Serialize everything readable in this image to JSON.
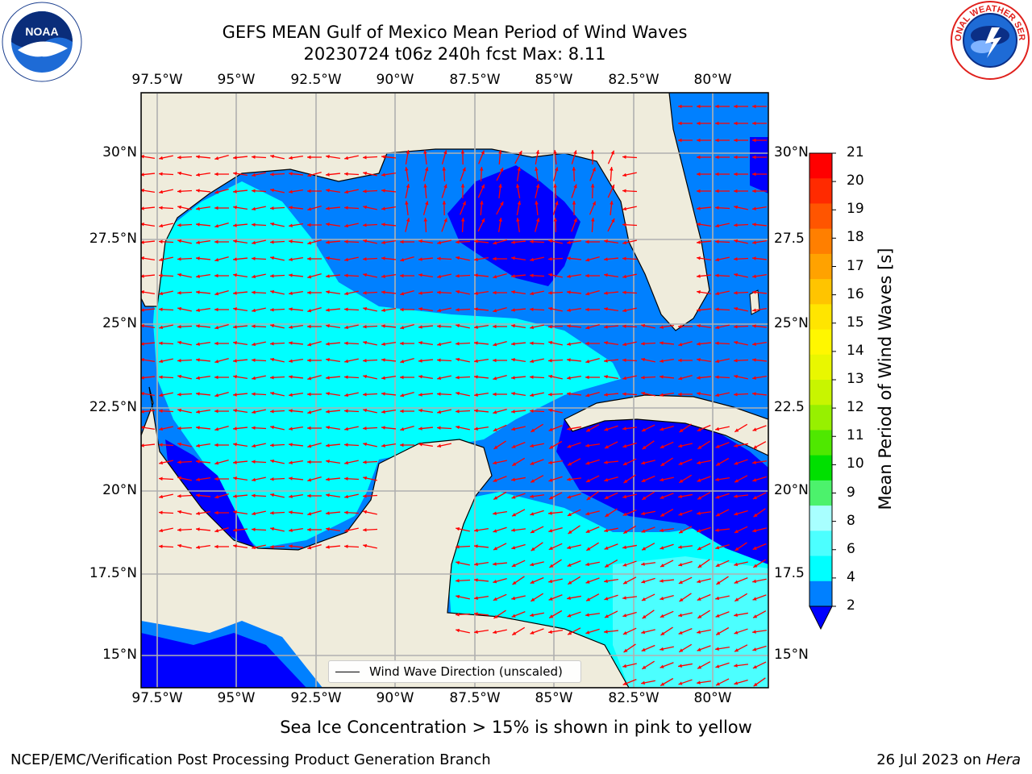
{
  "title": {
    "line1": "GEFS MEAN Gulf of Mexico Mean Period of Wind Waves",
    "line2": "20230724 t06z 240h fcst   Max: 8.11"
  },
  "axes": {
    "lon_ticks": [
      "97.5°W",
      "95°W",
      "92.5°W",
      "90°W",
      "87.5°W",
      "85°W",
      "82.5°W",
      "80°W"
    ],
    "lat_ticks_left": [
      "30°N",
      "27.5°N",
      "25°N",
      "22.5°N",
      "20°N",
      "17.5°N",
      "15°N"
    ],
    "lat_ticks_right": [
      "30°N",
      "27.5",
      "25°N",
      "22.5",
      "20°N",
      "17.5",
      "15°N"
    ]
  },
  "legend": {
    "label": "Wind Wave Direction (unscaled)"
  },
  "colorbar": {
    "title": "Mean Period of Wind Waves [s]",
    "ticks": [
      "21",
      "20",
      "19",
      "18",
      "17",
      "16",
      "15",
      "14",
      "13",
      "12",
      "11",
      "10",
      "9",
      "8",
      "6",
      "4",
      "2"
    ],
    "colors": [
      "#ff0000",
      "#ff2a00",
      "#ff5500",
      "#ff7f00",
      "#ffa200",
      "#ffc400",
      "#ffe500",
      "#fff700",
      "#e9f700",
      "#c8f500",
      "#97f000",
      "#4fe800",
      "#00e000",
      "#4cf26c",
      "#a8ffff",
      "#4cffff",
      "#00ffff",
      "#0080ff",
      "#0000ff"
    ]
  },
  "subtitle": "Sea Ice Concentration > 15% is shown in pink to yellow",
  "footer": {
    "left": "NCEP/EMC/Verification Post Processing Product Generation Branch",
    "date": "26 Jul 2023 on ",
    "machine": "Hera"
  },
  "logos": {
    "noaa": {
      "icon": "noaa-logo-icon",
      "text": "NOAA"
    },
    "nws": {
      "icon": "nws-logo-icon"
    }
  },
  "map_colors": {
    "land": "#efecdc",
    "band_2_4": "#0080ff",
    "band_4_6": "#00ffff",
    "band_6_8": "#4cffff",
    "below_2": "#0000ff",
    "arrow": "#ff0000",
    "grid": "#b0b0b0"
  }
}
